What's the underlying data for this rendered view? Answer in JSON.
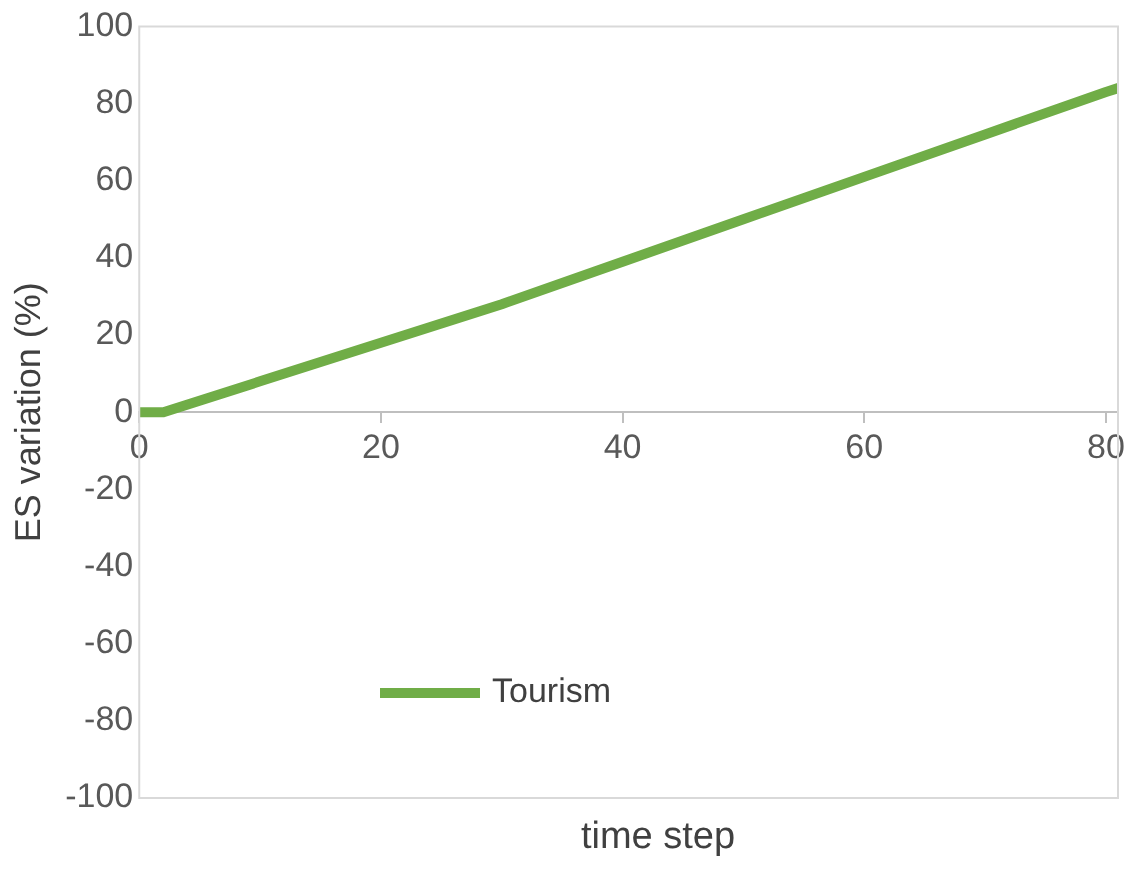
{
  "chart_data": {
    "type": "line",
    "xlabel": "time step",
    "ylabel": "ES variation (%)",
    "x": [
      0,
      2,
      10,
      20,
      30,
      40,
      50,
      60,
      70,
      80,
      81
    ],
    "series": [
      {
        "name": "Tourism",
        "color": "#70ad47",
        "values": [
          0,
          0,
          8,
          18,
          28,
          39,
          50,
          61,
          72,
          83,
          84
        ]
      }
    ],
    "xlim": [
      0,
      81
    ],
    "xticks": [
      0,
      20,
      40,
      60,
      80
    ],
    "ylim": [
      -100,
      100
    ],
    "yticks": [
      -100,
      -80,
      -60,
      -40,
      -20,
      0,
      20,
      40,
      60,
      80,
      100
    ],
    "grid": false,
    "legend": "bottom left",
    "marker": "none",
    "line_style": "solid"
  }
}
